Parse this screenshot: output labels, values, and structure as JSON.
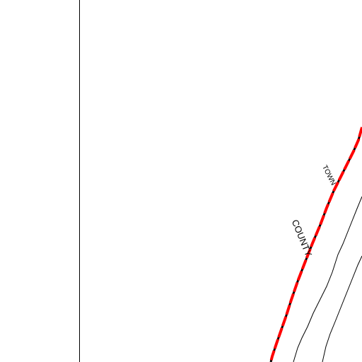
{
  "map": {
    "labels": {
      "county": "COUNTY",
      "town": "TOWN"
    },
    "colors": {
      "background": "#ffffff",
      "line": "#000000",
      "boundary_red": "#ff0000",
      "boundary_black": "#000000"
    }
  }
}
